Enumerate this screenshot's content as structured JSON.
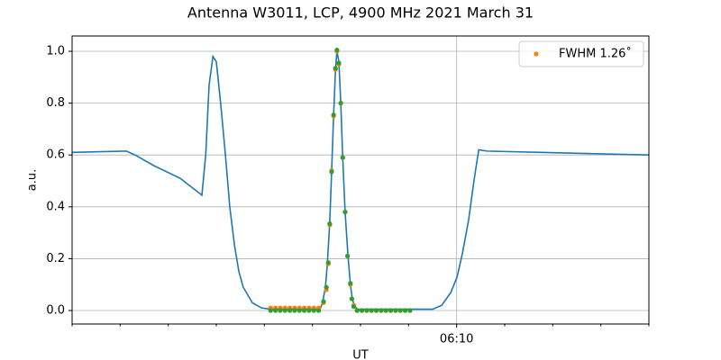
{
  "chart_data": {
    "type": "line",
    "title": "Antenna W3011, LCP, 4900 MHz 2021 March 31",
    "xlabel": "UT",
    "ylabel": "a.u.",
    "xlim": [
      2,
      14
    ],
    "ylim": [
      -0.052,
      1.059
    ],
    "xticks": [
      {
        "value": 10,
        "label": "06:10"
      }
    ],
    "xminorticks": [
      2,
      3,
      4,
      5,
      6,
      7,
      8,
      9,
      11,
      12,
      13,
      14
    ],
    "yticks": [
      {
        "value": 0,
        "label": "0.0"
      },
      {
        "value": 0.2,
        "label": "0.2"
      },
      {
        "value": 0.4,
        "label": "0.4"
      },
      {
        "value": 0.6,
        "label": "0.6"
      },
      {
        "value": 0.8,
        "label": "0.8"
      },
      {
        "value": 1,
        "label": "1.0"
      }
    ],
    "grid": true,
    "legend": "upper right",
    "series": [
      {
        "type": "line",
        "color": "#1f77b4",
        "x": [
          2.0,
          3.13,
          3.31,
          3.69,
          4.25,
          4.7,
          4.78,
          4.85,
          4.93,
          5.0,
          5.09,
          5.19,
          5.28,
          5.38,
          5.47,
          5.56,
          5.75,
          5.94,
          6.13,
          7.16,
          7.21,
          7.27,
          7.31,
          7.36,
          7.4,
          7.44,
          7.48,
          7.51,
          7.55,
          7.59,
          7.63,
          7.68,
          7.74,
          7.79,
          7.83,
          7.87,
          7.93,
          9.5,
          9.69,
          9.88,
          10.01,
          10.12,
          10.25,
          10.36,
          10.46,
          10.63,
          11.75,
          12.88,
          14.0
        ],
        "values": [
          0.61,
          0.615,
          0.6,
          0.56,
          0.51,
          0.445,
          0.6,
          0.87,
          0.98,
          0.96,
          0.8,
          0.6,
          0.4,
          0.25,
          0.15,
          0.09,
          0.03,
          0.01,
          0.005,
          0.005,
          0.03,
          0.09,
          0.18,
          0.34,
          0.54,
          0.75,
          0.93,
          1.0,
          0.96,
          0.8,
          0.59,
          0.38,
          0.21,
          0.1,
          0.045,
          0.02,
          0.005,
          0.005,
          0.02,
          0.07,
          0.13,
          0.22,
          0.35,
          0.5,
          0.62,
          0.615,
          0.61,
          0.605,
          0.6
        ]
      },
      {
        "type": "scatter",
        "name": "FWHM 1.26˚",
        "color": "#ff7f0e",
        "x": [
          6.13,
          6.23,
          6.33,
          6.43,
          6.53,
          6.63,
          6.73,
          6.83,
          6.93,
          7.03,
          7.13,
          7.23,
          7.29,
          7.33,
          7.36,
          7.4,
          7.44,
          7.48,
          7.51,
          7.55,
          7.59,
          7.63,
          7.68,
          7.73,
          7.79,
          7.82,
          7.86,
          7.93,
          8.03,
          8.13,
          8.23,
          8.33,
          8.43,
          8.53,
          8.63,
          8.73,
          8.83,
          8.93,
          9.03
        ],
        "values": [
          0.01,
          0.01,
          0.01,
          0.01,
          0.01,
          0.01,
          0.01,
          0.01,
          0.01,
          0.01,
          0.01,
          0.03,
          0.08,
          0.18,
          0.33,
          0.54,
          0.75,
          0.93,
          1.0,
          0.95,
          0.8,
          0.59,
          0.38,
          0.21,
          0.1,
          0.045,
          0.02,
          0,
          0,
          0,
          0,
          0,
          0,
          0,
          0,
          0,
          0,
          0,
          0
        ]
      },
      {
        "type": "scatter",
        "color": "#2ca02c",
        "x": [
          6.13,
          6.23,
          6.33,
          6.43,
          6.53,
          6.63,
          6.73,
          6.83,
          6.93,
          7.03,
          7.13,
          7.23,
          7.29,
          7.33,
          7.36,
          7.4,
          7.44,
          7.48,
          7.51,
          7.55,
          7.59,
          7.63,
          7.68,
          7.73,
          7.79,
          7.82,
          7.86,
          7.93,
          8.03,
          8.13,
          8.23,
          8.33,
          8.43,
          8.53,
          8.63,
          8.73,
          8.83,
          8.93,
          9.03
        ],
        "values": [
          0,
          0,
          0,
          0,
          0,
          0,
          0,
          0,
          0,
          0,
          0,
          0.035,
          0.09,
          0.185,
          0.335,
          0.535,
          0.755,
          0.935,
          1.005,
          0.955,
          0.8,
          0.59,
          0.38,
          0.21,
          0.105,
          0.045,
          0.015,
          0,
          0,
          0,
          0,
          0,
          0,
          0,
          0,
          0,
          0,
          0,
          0
        ]
      }
    ]
  }
}
